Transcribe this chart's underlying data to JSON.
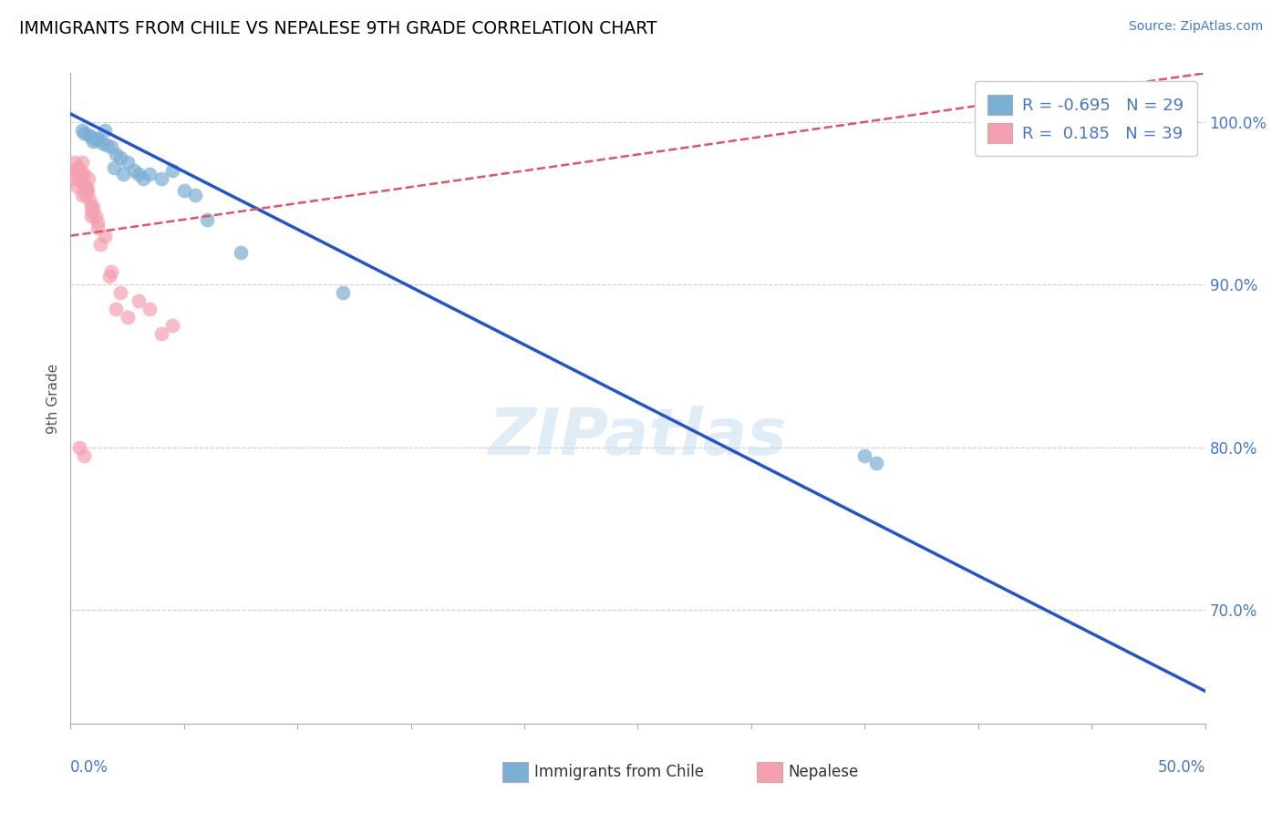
{
  "title": "IMMIGRANTS FROM CHILE VS NEPALESE 9TH GRADE CORRELATION CHART",
  "source_text": "Source: ZipAtlas.com",
  "ylabel": "9th Grade",
  "xlim": [
    0.0,
    50.0
  ],
  "ylim": [
    63.0,
    103.0
  ],
  "ytick_values": [
    70.0,
    80.0,
    90.0,
    100.0
  ],
  "ytick_labels": [
    "70.0%",
    "80.0%",
    "90.0%",
    "100.0%"
  ],
  "xtick_left_label": "0.0%",
  "xtick_right_label": "50.0%",
  "blue_R": -0.695,
  "blue_N": 29,
  "pink_R": 0.185,
  "pink_N": 39,
  "blue_scatter_color": "#7BAFD4",
  "pink_scatter_color": "#F4A0B0",
  "blue_line_color": "#2255CC",
  "pink_line_color": "#DD5566",
  "watermark_color": "#C8DFF0",
  "blue_line_x0": 0.0,
  "blue_line_y0": 100.5,
  "blue_line_x1": 50.0,
  "blue_line_y1": 65.0,
  "pink_line_x0": 0.0,
  "pink_line_y0": 93.0,
  "pink_line_x1": 50.0,
  "pink_line_y1": 103.0,
  "blue_scatter_x": [
    0.5,
    0.8,
    1.0,
    1.2,
    1.5,
    1.8,
    2.0,
    2.2,
    2.5,
    2.8,
    3.0,
    3.2,
    3.5,
    4.0,
    4.5,
    5.0,
    5.5,
    6.0,
    0.6,
    0.9,
    1.1,
    1.4,
    1.6,
    1.9,
    2.3,
    7.5,
    12.0,
    35.0,
    35.5
  ],
  "blue_scatter_y": [
    99.5,
    99.2,
    98.8,
    99.0,
    99.5,
    98.5,
    98.0,
    97.8,
    97.5,
    97.0,
    96.8,
    96.5,
    96.8,
    96.5,
    97.0,
    95.8,
    95.5,
    94.0,
    99.3,
    99.1,
    98.9,
    98.7,
    98.6,
    97.2,
    96.8,
    92.0,
    89.5,
    79.5,
    79.0
  ],
  "pink_scatter_x": [
    0.1,
    0.15,
    0.2,
    0.25,
    0.3,
    0.35,
    0.4,
    0.45,
    0.5,
    0.55,
    0.6,
    0.65,
    0.7,
    0.75,
    0.8,
    0.85,
    0.9,
    0.95,
    1.0,
    1.1,
    1.2,
    1.3,
    1.5,
    1.7,
    2.0,
    2.5,
    3.0,
    3.5,
    4.0,
    4.5,
    0.3,
    0.5,
    0.7,
    0.9,
    1.2,
    1.8,
    2.2,
    0.4,
    0.6
  ],
  "pink_scatter_y": [
    96.5,
    97.0,
    97.5,
    96.8,
    97.2,
    96.5,
    97.0,
    96.8,
    97.5,
    96.2,
    96.8,
    95.5,
    96.0,
    95.8,
    96.5,
    95.2,
    94.8,
    94.5,
    94.8,
    94.2,
    93.8,
    92.5,
    93.0,
    90.5,
    88.5,
    88.0,
    89.0,
    88.5,
    87.0,
    87.5,
    96.0,
    95.5,
    95.8,
    94.2,
    93.5,
    90.8,
    89.5,
    80.0,
    79.5
  ],
  "legend_blue_label": "R = -0.695   N = 29",
  "legend_pink_label": "R =  0.185   N = 39",
  "bottom_legend_blue": "Immigrants from Chile",
  "bottom_legend_pink": "Nepalese"
}
